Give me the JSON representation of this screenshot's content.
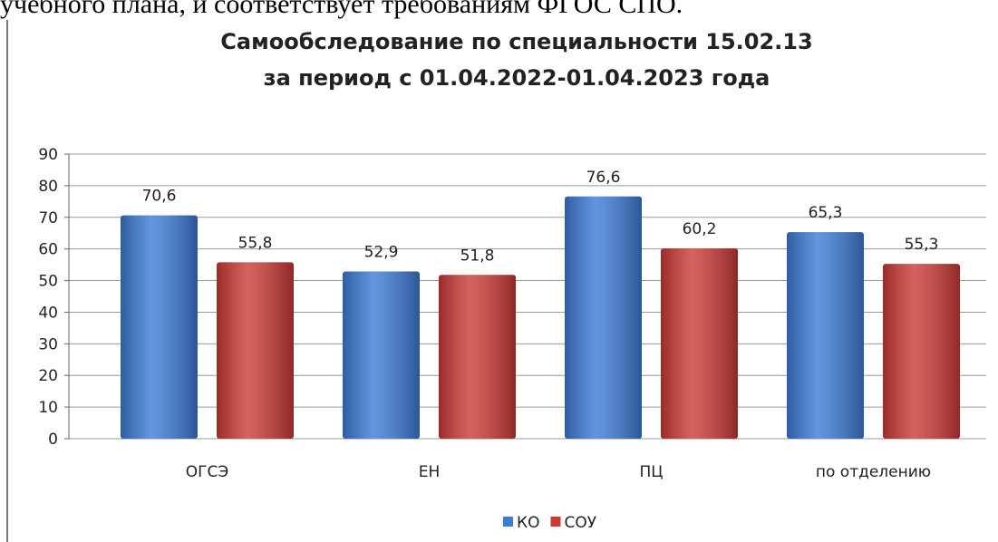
{
  "page_text": "учебного плана, и соответствует требованиям ФГОС СПО.",
  "chart_data": {
    "type": "bar",
    "title": "Самообследование по специальности 15.02.13",
    "subtitle": "за период с 01.04.2022-01.04.2023 года",
    "categories": [
      "ОГСЭ",
      "ЕН",
      "ПЦ",
      "по отделению"
    ],
    "series": [
      {
        "name": "КО",
        "color": "#3c7bd6",
        "values": [
          70.6,
          52.9,
          76.6,
          65.3
        ],
        "value_labels": [
          "70,6",
          "52,9",
          "76,6",
          "65,3"
        ]
      },
      {
        "name": "СОУ",
        "color": "#cc3a36",
        "values": [
          55.8,
          51.8,
          60.2,
          55.3
        ],
        "value_labels": [
          "55,8",
          "51,8",
          "60,2",
          "55,3"
        ]
      }
    ],
    "ylim": [
      0,
      90
    ],
    "yticks": [
      0,
      10,
      20,
      30,
      40,
      50,
      60,
      70,
      80,
      90
    ],
    "grid": true,
    "legend": "bottom"
  }
}
